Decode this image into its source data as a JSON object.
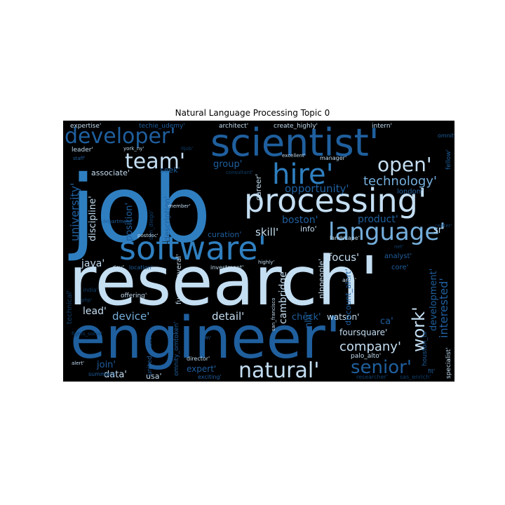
{
  "chart_data": {
    "type": "wordcloud",
    "title": "Natural Language Processing Topic 0",
    "background": "#000000",
    "palette": [
      "#0e3e6b",
      "#1f5f9e",
      "#2f7fc0",
      "#75aedb",
      "#c4def2"
    ],
    "words": [
      {
        "text": "job",
        "weight": 100,
        "shade": 2,
        "rotate": 0
      },
      {
        "text": "research'",
        "weight": 88,
        "shade": 4,
        "rotate": 0
      },
      {
        "text": "engineer'",
        "weight": 76,
        "shade": 1,
        "rotate": 0
      },
      {
        "text": "scientist'",
        "weight": 56,
        "shade": 1,
        "rotate": 0
      },
      {
        "text": "processing'",
        "weight": 50,
        "shade": 4,
        "rotate": 0
      },
      {
        "text": "software'",
        "weight": 50,
        "shade": 2,
        "rotate": 0
      },
      {
        "text": "hire'",
        "weight": 40,
        "shade": 2,
        "rotate": 0
      },
      {
        "text": "language'",
        "weight": 34,
        "shade": 3,
        "rotate": 0
      },
      {
        "text": "developer'",
        "weight": 32,
        "shade": 1,
        "rotate": 0
      },
      {
        "text": "natural'",
        "weight": 30,
        "shade": 4,
        "rotate": 0
      },
      {
        "text": "team'",
        "weight": 30,
        "shade": 4,
        "rotate": 0
      },
      {
        "text": "open'",
        "weight": 28,
        "shade": 4,
        "rotate": 0
      },
      {
        "text": "senior'",
        "weight": 26,
        "shade": 1,
        "rotate": 0
      },
      {
        "text": "work'",
        "weight": 24,
        "shade": 4,
        "rotate": -90
      },
      {
        "text": "technology'",
        "weight": 18,
        "shade": 3,
        "rotate": 0
      },
      {
        "text": "company'",
        "weight": 18,
        "shade": 4,
        "rotate": 0
      },
      {
        "text": "interested'",
        "weight": 16,
        "shade": 1,
        "rotate": -90
      },
      {
        "text": "development'",
        "weight": 15,
        "shade": 1,
        "rotate": -90
      },
      {
        "text": "university'",
        "weight": 16,
        "shade": 1,
        "rotate": -90
      },
      {
        "text": "opportunity'",
        "weight": 15,
        "shade": 1,
        "rotate": 0
      },
      {
        "text": "skill'",
        "weight": 15,
        "shade": 4,
        "rotate": 0
      },
      {
        "text": "focus'",
        "weight": 15,
        "shade": 4,
        "rotate": 0
      },
      {
        "text": "device'",
        "weight": 15,
        "shade": 3,
        "rotate": 0
      },
      {
        "text": "detail'",
        "weight": 15,
        "shade": 4,
        "rotate": 0
      },
      {
        "text": "cambridge'",
        "weight": 14,
        "shade": 4,
        "rotate": -90
      },
      {
        "text": "lead'",
        "weight": 14,
        "shade": 4,
        "rotate": 0
      },
      {
        "text": "java'",
        "weight": 14,
        "shade": 4,
        "rotate": 0
      },
      {
        "text": "product'",
        "weight": 14,
        "shade": 1,
        "rotate": 0
      },
      {
        "text": "boston'",
        "weight": 14,
        "shade": 1,
        "rotate": 0
      },
      {
        "text": "position'",
        "weight": 13,
        "shade": 1,
        "rotate": -90
      },
      {
        "text": "discipline'",
        "weight": 13,
        "shade": 4,
        "rotate": -90
      },
      {
        "text": "group'",
        "weight": 13,
        "shade": 1,
        "rotate": 0
      },
      {
        "text": "nlu'",
        "weight": 13,
        "shade": 1,
        "rotate": -90
      },
      {
        "text": "ca'",
        "weight": 13,
        "shade": 1,
        "rotate": 0
      },
      {
        "text": "check'",
        "weight": 13,
        "shade": 1,
        "rotate": 0
      },
      {
        "text": "sr'",
        "weight": 13,
        "shade": 4,
        "rotate": 0
      },
      {
        "text": "data'",
        "weight": 13,
        "shade": 4,
        "rotate": 0
      },
      {
        "text": "join'",
        "weight": 13,
        "shade": 1,
        "rotate": 0
      },
      {
        "text": "expert'",
        "weight": 12,
        "shade": 1,
        "rotate": 0
      },
      {
        "text": "foursquare'",
        "weight": 12,
        "shade": 4,
        "rotate": 0
      },
      {
        "text": "watson'",
        "weight": 12,
        "shade": 4,
        "rotate": 0
      },
      {
        "text": "associate'",
        "weight": 11,
        "shade": 4,
        "rotate": 0
      },
      {
        "text": "description'",
        "weight": 11,
        "shade": 1,
        "rotate": -90
      },
      {
        "text": "career'",
        "weight": 11,
        "shade": 4,
        "rotate": -90
      },
      {
        "text": "seek'",
        "weight": 11,
        "shade": 1,
        "rotate": 0
      },
      {
        "text": "info'",
        "weight": 11,
        "shade": 4,
        "rotate": 0
      },
      {
        "text": "usa'",
        "weight": 11,
        "shade": 4,
        "rotate": 0
      },
      {
        "text": "nlppeople'",
        "weight": 11,
        "shade": 4,
        "rotate": -90
      },
      {
        "text": "discount_alert'",
        "weight": 11,
        "shade": 1,
        "rotate": -90
      },
      {
        "text": "curation'",
        "weight": 11,
        "shade": 1,
        "rotate": 0
      },
      {
        "text": "technical'",
        "weight": 10,
        "shade": 0,
        "rotate": -90
      },
      {
        "text": "london'",
        "weight": 10,
        "shade": 1,
        "rotate": 0
      },
      {
        "text": "analyst'",
        "weight": 10,
        "shade": 1,
        "rotate": 0
      },
      {
        "text": "core'",
        "weight": 10,
        "shade": 1,
        "rotate": 0
      },
      {
        "text": "fused_several'",
        "weight": 10,
        "shade": 4,
        "rotate": -90
      },
      {
        "text": "palo_alto'",
        "weight": 9,
        "shade": 4,
        "rotate": 0
      },
      {
        "text": "houston_tx'",
        "weight": 9,
        "shade": 1,
        "rotate": -90
      },
      {
        "text": "specialist'",
        "weight": 9,
        "shade": 4,
        "rotate": -90
      },
      {
        "text": "fellow'",
        "weight": 9,
        "shade": 1,
        "rotate": -90
      },
      {
        "text": "omnity_omtoken'",
        "weight": 9,
        "shade": 1,
        "rotate": -90
      },
      {
        "text": "united_state'",
        "weight": 9,
        "shade": 1,
        "rotate": -90
      },
      {
        "text": "expertise'",
        "weight": 9,
        "shade": 4,
        "rotate": 0
      },
      {
        "text": "techie_udemy'",
        "weight": 9,
        "shade": 1,
        "rotate": 0
      },
      {
        "text": "architect'",
        "weight": 9,
        "shade": 4,
        "rotate": 0
      },
      {
        "text": "create_highly'",
        "weight": 9,
        "shade": 4,
        "rotate": 0
      },
      {
        "text": "intern'",
        "weight": 9,
        "shade": 4,
        "rotate": 0
      },
      {
        "text": "leader'",
        "weight": 9,
        "shade": 4,
        "rotate": 0
      },
      {
        "text": "offering'",
        "weight": 9,
        "shade": 4,
        "rotate": 0
      },
      {
        "text": "director'",
        "weight": 8,
        "shade": 4,
        "rotate": 0
      },
      {
        "text": "investment'",
        "weight": 8,
        "shade": 4,
        "rotate": 0
      },
      {
        "text": "landscape'",
        "weight": 8,
        "shade": 4,
        "rotate": 0
      },
      {
        "text": "area'",
        "weight": 8,
        "shade": 4,
        "rotate": 0
      },
      {
        "text": "dev'",
        "weight": 8,
        "shade": 4,
        "rotate": 0
      },
      {
        "text": "location'",
        "weight": 8,
        "shade": 1,
        "rotate": 0
      },
      {
        "text": "summary'",
        "weight": 8,
        "shade": 1,
        "rotate": 0
      },
      {
        "text": "exciting'",
        "weight": 8,
        "shade": 1,
        "rotate": 0
      },
      {
        "text": "researcher'",
        "weight": 8,
        "shade": 0,
        "rotate": 0
      },
      {
        "text": "sas_enrich'",
        "weight": 8,
        "shade": 0,
        "rotate": 0
      },
      {
        "text": "fit'",
        "weight": 8,
        "shade": 1,
        "rotate": 0
      },
      {
        "text": "manager'",
        "weight": 8,
        "shade": 4,
        "rotate": 0
      },
      {
        "text": "excellent'",
        "weight": 7,
        "shade": 4,
        "rotate": 0
      },
      {
        "text": "omnity'",
        "weight": 8,
        "shade": 1,
        "rotate": 0
      },
      {
        "text": "staff'",
        "weight": 7,
        "shade": 1,
        "rotate": 0
      },
      {
        "text": "york_ny'",
        "weight": 7,
        "shade": 4,
        "rotate": 0
      },
      {
        "text": "itjob'",
        "weight": 7,
        "shade": 0,
        "rotate": 0
      },
      {
        "text": "consultant'",
        "weight": 7,
        "shade": 0,
        "rotate": 0
      },
      {
        "text": "highly'",
        "weight": 7,
        "shade": 4,
        "rotate": 0
      },
      {
        "text": "member'",
        "weight": 7,
        "shade": 4,
        "rotate": 0
      },
      {
        "text": "department'",
        "weight": 7,
        "shade": 1,
        "rotate": 0
      },
      {
        "text": "san_diego'",
        "weight": 8,
        "shade": 0,
        "rotate": -90
      },
      {
        "text": "fights_social'",
        "weight": 7,
        "shade": 0,
        "rotate": 0
      },
      {
        "text": "india'",
        "weight": 8,
        "shade": 0,
        "rotate": 0
      },
      {
        "text": "php'",
        "weight": 7,
        "shade": 0,
        "rotate": 0
      },
      {
        "text": "alert'",
        "weight": 7,
        "shade": 4,
        "rotate": 0
      },
      {
        "text": "om'",
        "weight": 7,
        "shade": 1,
        "rotate": 0
      },
      {
        "text": "postdoc'",
        "weight": 7,
        "shade": 4,
        "rotate": 0
      },
      {
        "text": "center'",
        "weight": 7,
        "shade": 0,
        "rotate": 0
      },
      {
        "text": "net'",
        "weight": 7,
        "shade": 0,
        "rotate": 0
      },
      {
        "text": "san_francisco",
        "weight": 7,
        "shade": 4,
        "rotate": -90
      }
    ]
  }
}
